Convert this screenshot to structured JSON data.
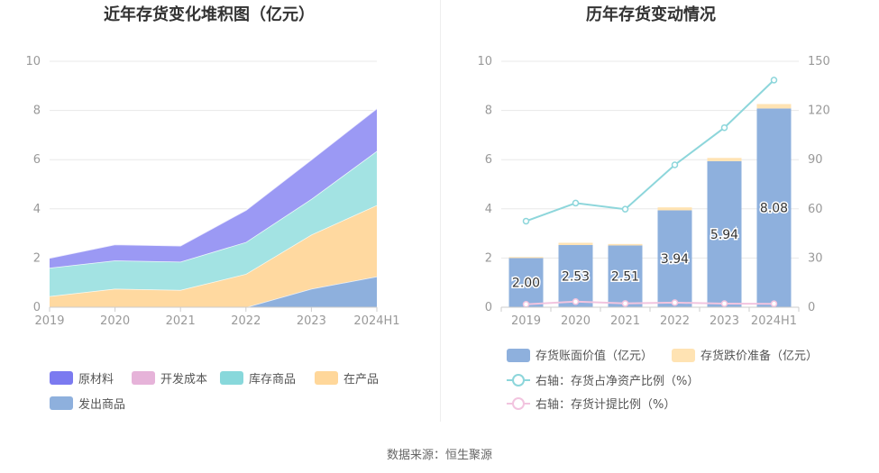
{
  "source": "数据来源：恒生聚源",
  "chart_data": [
    {
      "type": "area",
      "stacked": true,
      "title": "近年存货变化堆积图（亿元）",
      "x": [
        "2019",
        "2020",
        "2021",
        "2022",
        "2023",
        "2024H1"
      ],
      "ylim": [
        0,
        10
      ],
      "yticks": [
        0,
        2,
        4,
        6,
        8,
        10
      ],
      "grid": true,
      "legend_position": "bottom-left",
      "series": [
        {
          "name": "发出商品",
          "color": "#8eb0dd",
          "values": [
            0,
            0,
            0,
            0,
            0.75,
            1.25
          ]
        },
        {
          "name": "在产品",
          "color": "#ffd9a0",
          "values": [
            0.45,
            0.75,
            0.7,
            1.35,
            2.2,
            2.9
          ]
        },
        {
          "name": "开发成本",
          "color": "#e6b3d9",
          "values": [
            0,
            0,
            0,
            0,
            0,
            0
          ]
        },
        {
          "name": "库存商品",
          "color": "#a3e3e3",
          "values": [
            1.15,
            1.15,
            1.15,
            1.3,
            1.45,
            2.2
          ]
        },
        {
          "name": "原材料",
          "color": "#9b99f4",
          "values": [
            0.4,
            0.65,
            0.65,
            1.3,
            1.6,
            1.73
          ]
        }
      ],
      "legend": [
        {
          "name": "原材料",
          "color": "#7b7af0"
        },
        {
          "name": "开发成本",
          "color": "#e6b3d9"
        },
        {
          "name": "库存商品",
          "color": "#88d8db"
        },
        {
          "name": "在产品",
          "color": "#ffd79a"
        },
        {
          "name": "发出商品",
          "color": "#8eb0dd"
        }
      ]
    },
    {
      "type": "bar",
      "title": "历年存货变动情况",
      "categories": [
        "2019",
        "2020",
        "2021",
        "2022",
        "2023",
        "2024H1"
      ],
      "ylim": [
        0,
        10
      ],
      "yticks": [
        0,
        2,
        4,
        6,
        8,
        10
      ],
      "y2lim": [
        0,
        150
      ],
      "y2ticks": [
        0,
        30,
        60,
        90,
        120,
        150
      ],
      "grid": true,
      "legend_position": "bottom",
      "series": [
        {
          "name": "存货账面价值（亿元）",
          "axis": "left",
          "kind": "bar",
          "color": "#8eb0dd",
          "values": [
            2.0,
            2.53,
            2.51,
            3.94,
            5.94,
            8.08
          ],
          "labels": [
            "2.00",
            "2.53",
            "2.51",
            "3.94",
            "5.94",
            "8.08"
          ]
        },
        {
          "name": "存货跌价准备（亿元）",
          "axis": "left",
          "kind": "bar-stacked",
          "color": "#ffe3b3",
          "values": [
            0.04,
            0.09,
            0.06,
            0.12,
            0.13,
            0.18
          ]
        },
        {
          "name": "右轴：存货占净资产比例（%）",
          "axis": "right",
          "kind": "line",
          "color": "#8dd6db",
          "values": [
            52.5,
            63.5,
            59.8,
            86.8,
            109.5,
            138.5
          ]
        },
        {
          "name": "右轴：存货计提比例（%）",
          "axis": "right",
          "kind": "line",
          "color": "#f2c4df",
          "values": [
            1.8,
            3.4,
            2.3,
            2.8,
            2.2,
            2.1
          ]
        }
      ]
    }
  ]
}
